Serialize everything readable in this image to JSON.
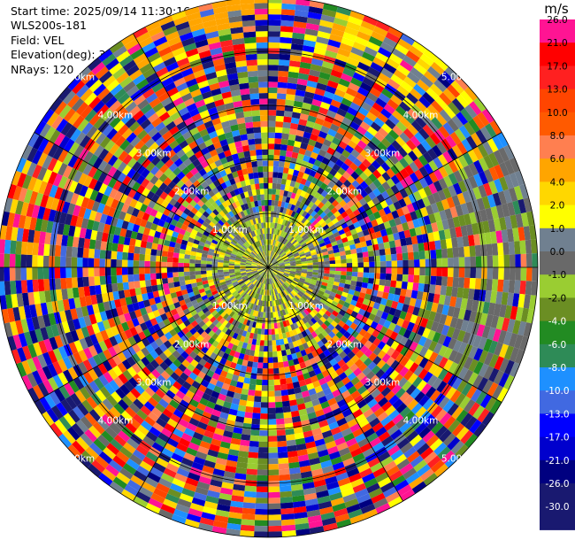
{
  "info": {
    "start_time": "Start time: 2025/09/14 11:30:16",
    "site": "WLS200s-181",
    "field": "Field: VEL",
    "elevation": "Elevation(deg): 35.00",
    "nrays": "NRays: 120"
  },
  "colorbar": {
    "unit": "m/s",
    "levels": [
      {
        "label": "26.0",
        "color": "#ff1493"
      },
      {
        "label": "21.0",
        "color": "#ff0000"
      },
      {
        "label": "17.0",
        "color": "#ff2020"
      },
      {
        "label": "13.0",
        "color": "#ff4500"
      },
      {
        "label": "10.0",
        "color": "#ff5a00"
      },
      {
        "label": "8.0",
        "color": "#ff7f50"
      },
      {
        "label": "6.0",
        "color": "#ffa500"
      },
      {
        "label": "4.0",
        "color": "#ffd700"
      },
      {
        "label": "2.0",
        "color": "#ffff00"
      },
      {
        "label": "1.0",
        "color": "#708090"
      },
      {
        "label": "0.0",
        "color": "#696969"
      },
      {
        "label": "-1.0",
        "color": "#9acd32"
      },
      {
        "label": "-2.0",
        "color": "#6b8e23"
      },
      {
        "label": "-4.0",
        "color": "#228b22"
      },
      {
        "label": "-6.0",
        "color": "#2e8b57"
      },
      {
        "label": "-8.0",
        "color": "#1e90ff"
      },
      {
        "label": "-10.0",
        "color": "#4169e1"
      },
      {
        "label": "-13.0",
        "color": "#0000ff"
      },
      {
        "label": "-17.0",
        "color": "#0000cd"
      },
      {
        "label": "-21.0",
        "color": "#000080"
      },
      {
        "label": "-26.0",
        "color": "#191970"
      },
      {
        "label": "-30.0",
        "color": "#191970"
      }
    ]
  },
  "chart_data": {
    "type": "heatmap",
    "projection": "polar",
    "field": "VEL",
    "nrays": 120,
    "range_rings_km": [
      1.0,
      2.0,
      3.0,
      4.0,
      5.0
    ],
    "ring_labels": [
      "1.00km",
      "2.00km",
      "3.00km",
      "4.00km",
      "5.00km"
    ],
    "max_range_km": 5.0
  }
}
